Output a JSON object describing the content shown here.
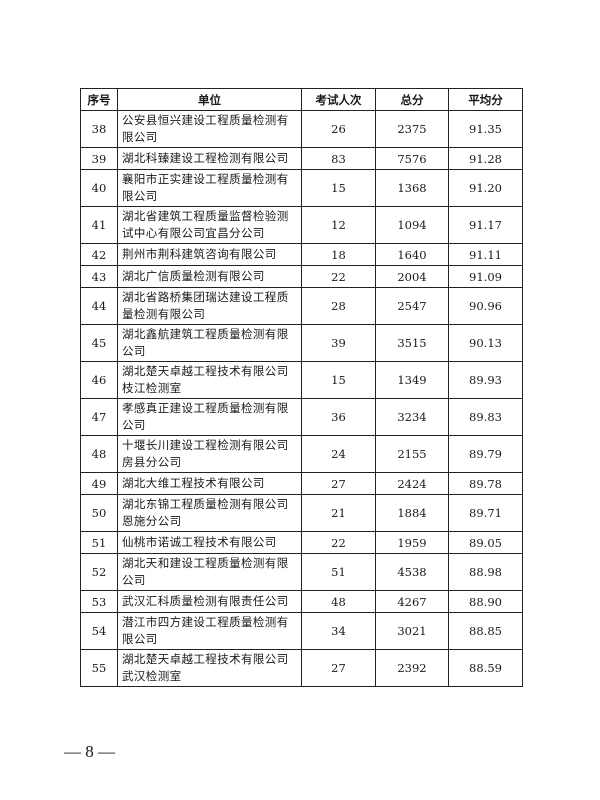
{
  "table": {
    "headers": [
      "序号",
      "单位",
      "考试人次",
      "总分",
      "平均分"
    ],
    "rows": [
      {
        "no": "38",
        "unit": "公安县恒兴建设工程质量检测有限公司",
        "count": "26",
        "total": "2375",
        "avg": "91.35",
        "lines": 2
      },
      {
        "no": "39",
        "unit": "湖北科臻建设工程检测有限公司",
        "count": "83",
        "total": "7576",
        "avg": "91.28",
        "lines": 1
      },
      {
        "no": "40",
        "unit": "襄阳市正实建设工程质量检测有限公司",
        "count": "15",
        "total": "1368",
        "avg": "91.20",
        "lines": 2
      },
      {
        "no": "41",
        "unit": "湖北省建筑工程质量监督检验测试中心有限公司宜昌分公司",
        "count": "12",
        "total": "1094",
        "avg": "91.17",
        "lines": 2
      },
      {
        "no": "42",
        "unit": "荆州市荆科建筑咨询有限公司",
        "count": "18",
        "total": "1640",
        "avg": "91.11",
        "lines": 1
      },
      {
        "no": "43",
        "unit": "湖北广信质量检测有限公司",
        "count": "22",
        "total": "2004",
        "avg": "91.09",
        "lines": 1
      },
      {
        "no": "44",
        "unit": "湖北省路桥集团瑞达建设工程质量检测有限公司",
        "count": "28",
        "total": "2547",
        "avg": "90.96",
        "lines": 2
      },
      {
        "no": "45",
        "unit": "湖北鑫航建筑工程质量检测有限公司",
        "count": "39",
        "total": "3515",
        "avg": "90.13",
        "lines": 2
      },
      {
        "no": "46",
        "unit": "湖北楚天卓越工程技术有限公司枝江检测室",
        "count": "15",
        "total": "1349",
        "avg": "89.93",
        "lines": 2
      },
      {
        "no": "47",
        "unit": "孝感真正建设工程质量检测有限公司",
        "count": "36",
        "total": "3234",
        "avg": "89.83",
        "lines": 2
      },
      {
        "no": "48",
        "unit": "十堰长川建设工程检测有限公司房县分公司",
        "count": "24",
        "total": "2155",
        "avg": "89.79",
        "lines": 2
      },
      {
        "no": "49",
        "unit": "湖北大维工程技术有限公司",
        "count": "27",
        "total": "2424",
        "avg": "89.78",
        "lines": 1
      },
      {
        "no": "50",
        "unit": "湖北东锦工程质量检测有限公司恩施分公司",
        "count": "21",
        "total": "1884",
        "avg": "89.71",
        "lines": 2
      },
      {
        "no": "51",
        "unit": "仙桃市诺诚工程技术有限公司",
        "count": "22",
        "total": "1959",
        "avg": "89.05",
        "lines": 1
      },
      {
        "no": "52",
        "unit": "湖北天和建设工程质量检测有限公司",
        "count": "51",
        "total": "4538",
        "avg": "88.98",
        "lines": 2
      },
      {
        "no": "53",
        "unit": "武汉汇科质量检测有限责任公司",
        "count": "48",
        "total": "4267",
        "avg": "88.90",
        "lines": 1
      },
      {
        "no": "54",
        "unit": "潜江市四方建设工程质量检测有限公司",
        "count": "34",
        "total": "3021",
        "avg": "88.85",
        "lines": 2
      },
      {
        "no": "55",
        "unit": "湖北楚天卓越工程技术有限公司武汉检测室",
        "count": "27",
        "total": "2392",
        "avg": "88.59",
        "lines": 2
      }
    ]
  },
  "footer": {
    "page": "— 8 —"
  }
}
